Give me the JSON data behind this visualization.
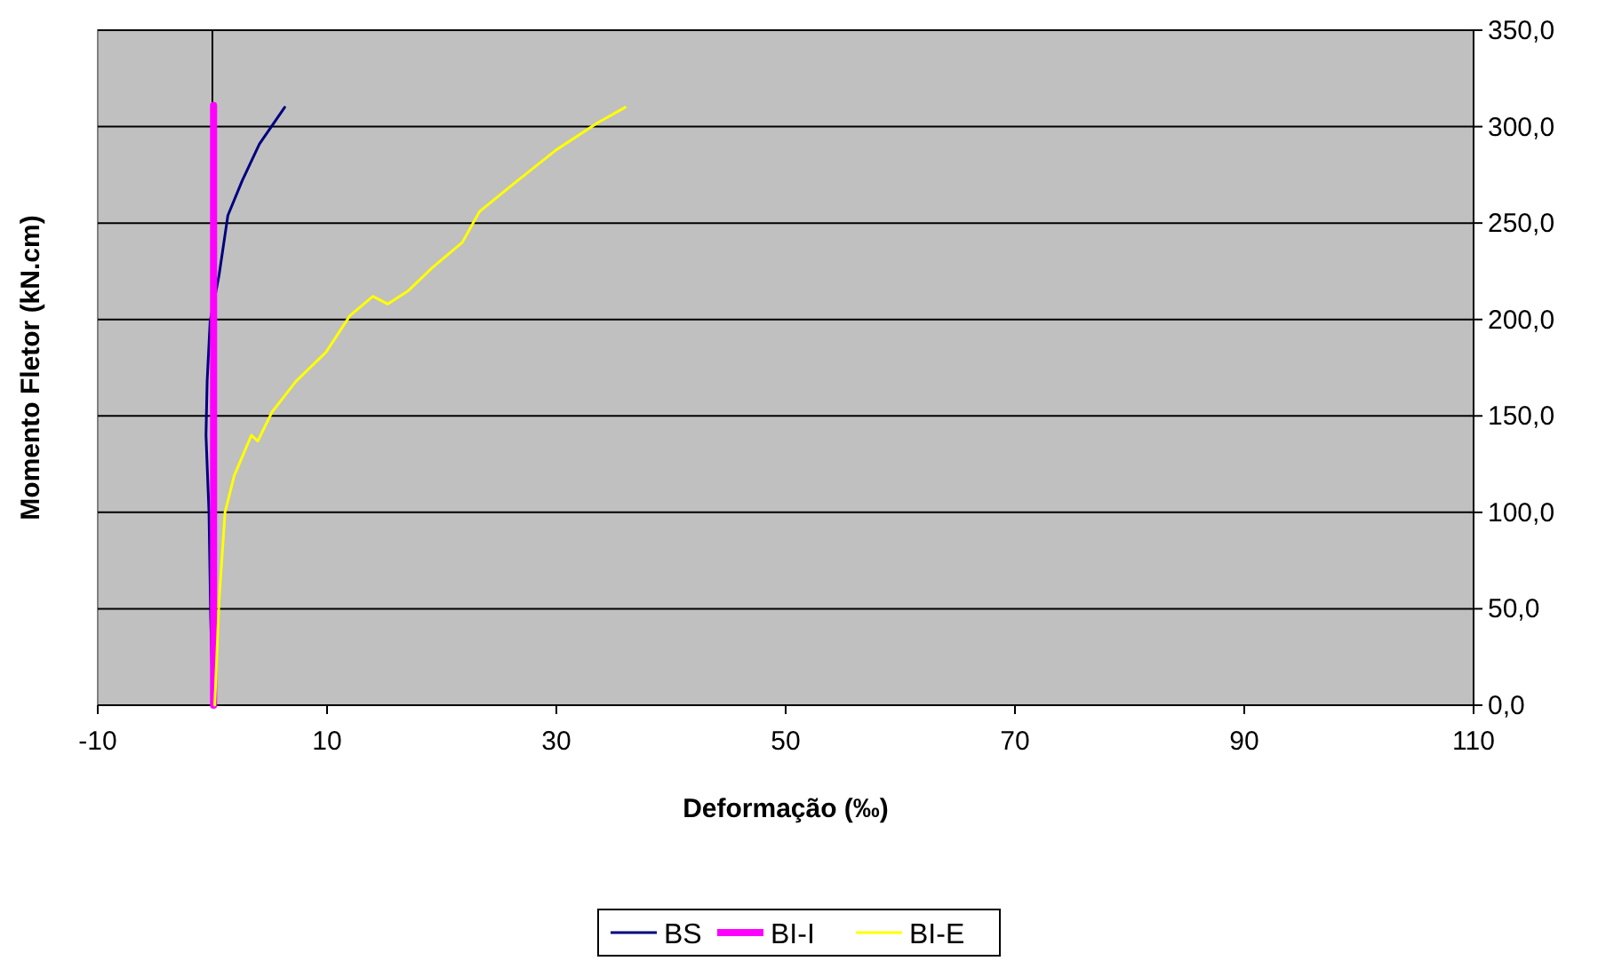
{
  "chart_data": {
    "type": "line",
    "xlabel": "Deformação (‰)",
    "ylabel": "Momento Fletor (kN.cm)",
    "xlim": [
      -10,
      110
    ],
    "xticks": [
      -10,
      10,
      30,
      50,
      70,
      90,
      110
    ],
    "ylim": [
      0,
      350
    ],
    "yticks": [
      {
        "value": 0,
        "label": "0,0"
      },
      {
        "value": 50,
        "label": "50,0"
      },
      {
        "value": 100,
        "label": "100,0"
      },
      {
        "value": 150,
        "label": "150,0"
      },
      {
        "value": 200,
        "label": "200,0"
      },
      {
        "value": 250,
        "label": "250,0"
      },
      {
        "value": 300,
        "label": "300,0"
      },
      {
        "value": 350,
        "label": "350,0"
      }
    ],
    "grid": "y",
    "legend": "bottom",
    "marker": "none",
    "ref_lines": [
      {
        "axis": "x",
        "value": 0,
        "color": "#000000"
      }
    ],
    "series": [
      {
        "name": "BS",
        "color": "#000080",
        "x": [
          0.05,
          -0.15,
          -0.3,
          -0.56,
          -0.46,
          -0.2,
          0.58,
          1.35,
          2.6,
          4.1,
          6.3
        ],
        "values": [
          0,
          45,
          100,
          140,
          168,
          199,
          223,
          254,
          272,
          291,
          310
        ]
      },
      {
        "name": "BI-I",
        "color": "#ff00ff",
        "x": [
          0.1,
          0.1
        ],
        "values": [
          0,
          311
        ]
      },
      {
        "name": "BI-E",
        "color": "#ffff00",
        "x": [
          0.2,
          0.58,
          1.1,
          1.9,
          3.4,
          3.96,
          5.2,
          7.3,
          9.9,
          12,
          14,
          15.3,
          17.1,
          19.2,
          21.8,
          23.3,
          26.4,
          30,
          33.6,
          36
        ],
        "values": [
          0,
          54,
          100,
          119,
          140,
          137,
          152,
          168,
          183,
          202,
          212,
          208,
          215,
          227,
          240,
          256,
          271,
          288,
          302,
          310
        ]
      }
    ]
  }
}
